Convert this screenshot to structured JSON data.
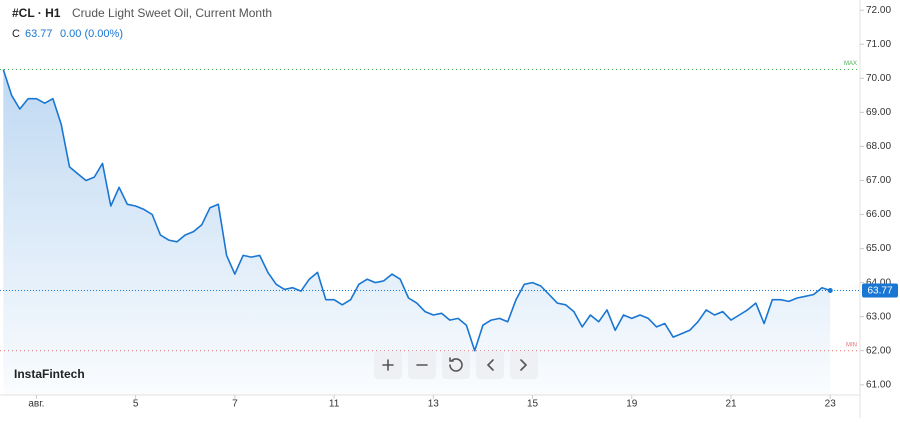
{
  "chart_data": {
    "type": "line",
    "symbol": "#CL · H1",
    "title": "Crude Light Sweet Oil, Current Month",
    "close_label": "C",
    "change": "0.00 (0.00%)",
    "brand": "InstaFintech",
    "max": {
      "label": "MAX",
      "value": 70.26,
      "color": "#4caf50"
    },
    "min": {
      "label": "MIN",
      "value": 62.0,
      "color": "#e57373"
    },
    "x": [
      0,
      1,
      2,
      3,
      4,
      5,
      6,
      7,
      8,
      9,
      10,
      11,
      12,
      13,
      14,
      15,
      16,
      17,
      18,
      19,
      20,
      21,
      22,
      23,
      24,
      25,
      26,
      27,
      28,
      29,
      30,
      31,
      32,
      33,
      34,
      35,
      36,
      37,
      38,
      39,
      40,
      41,
      42,
      43,
      44,
      45,
      46,
      47,
      48,
      49,
      50,
      51,
      52,
      53,
      54,
      55,
      56,
      57,
      58,
      59,
      60,
      61,
      62,
      63,
      64,
      65,
      66,
      67,
      68,
      69,
      70,
      71,
      72,
      73,
      74,
      75,
      76,
      77,
      78,
      79,
      80,
      81,
      82,
      83,
      84,
      85,
      86,
      87,
      88,
      89,
      90,
      91,
      92,
      93,
      94,
      95,
      96,
      97,
      98,
      99,
      100
    ],
    "series": [
      {
        "name": "#CL",
        "color": "#1976d2",
        "values": [
          70.26,
          69.5,
          69.1,
          69.4,
          69.4,
          69.27,
          69.4,
          68.65,
          67.4,
          67.2,
          67.0,
          67.1,
          67.5,
          66.25,
          66.8,
          66.3,
          66.25,
          66.15,
          66.0,
          65.4,
          65.25,
          65.2,
          65.4,
          65.5,
          65.7,
          66.2,
          66.3,
          64.8,
          64.25,
          64.8,
          64.75,
          64.8,
          64.3,
          63.95,
          63.8,
          63.85,
          63.75,
          64.1,
          64.3,
          63.5,
          63.5,
          63.35,
          63.5,
          63.95,
          64.1,
          64.0,
          64.05,
          64.25,
          64.1,
          63.55,
          63.4,
          63.15,
          63.05,
          63.1,
          62.9,
          62.95,
          62.75,
          62.0,
          62.75,
          62.9,
          62.95,
          62.85,
          63.5,
          63.95,
          64.0,
          63.9,
          63.65,
          63.4,
          63.35,
          63.15,
          62.7,
          63.05,
          62.85,
          63.2,
          62.6,
          63.05,
          62.95,
          63.05,
          62.95,
          62.7,
          62.8,
          62.4,
          62.5,
          62.6,
          62.85,
          63.2,
          63.05,
          63.15,
          62.9,
          63.05,
          63.2,
          63.4,
          62.8,
          63.5,
          63.5,
          63.45,
          63.55,
          63.6,
          63.65,
          63.85,
          63.77
        ]
      }
    ],
    "xlim": [
      -0.4,
      103.6
    ],
    "xticks": [
      {
        "value": 4,
        "label": "авг."
      },
      {
        "value": 16,
        "label": "5"
      },
      {
        "value": 28,
        "label": "7"
      },
      {
        "value": 40,
        "label": "11"
      },
      {
        "value": 52,
        "label": "13"
      },
      {
        "value": 64,
        "label": "15"
      },
      {
        "value": 76,
        "label": "19"
      },
      {
        "value": 88,
        "label": "21"
      },
      {
        "value": 100,
        "label": "23"
      }
    ],
    "ylim": [
      60.7,
      72.3
    ],
    "yticks": [
      {
        "value": 72,
        "label": "72.00"
      },
      {
        "value": 71,
        "label": "71.00"
      },
      {
        "value": 70,
        "label": "70.00"
      },
      {
        "value": 69,
        "label": "69.00"
      },
      {
        "value": 68,
        "label": "68.00"
      },
      {
        "value": 67,
        "label": "67.00"
      },
      {
        "value": 66,
        "label": "66.00"
      },
      {
        "value": 65,
        "label": "65.00"
      },
      {
        "value": 64,
        "label": "64.00"
      },
      {
        "value": 63,
        "label": "63.00"
      },
      {
        "value": 62,
        "label": "62.00"
      },
      {
        "value": 61,
        "label": "61.00"
      }
    ]
  }
}
